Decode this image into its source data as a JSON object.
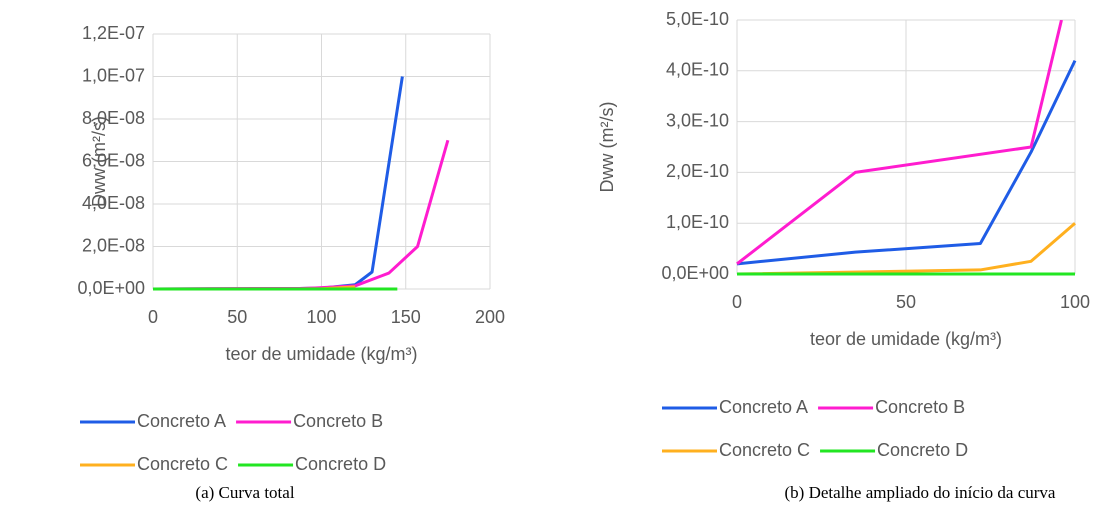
{
  "chart_data": [
    {
      "type": "line",
      "caption": "(a) Curva total",
      "x_label": "teor de umidade (kg/m³)",
      "y_label": "Dww (m²/s)",
      "xlim": [
        0,
        200
      ],
      "xticks": [
        0,
        50,
        100,
        150,
        200
      ],
      "ylim": [
        0,
        1.2e-07
      ],
      "yticks": [
        {
          "value": 0,
          "label": "0,0E+00"
        },
        {
          "value": 2e-08,
          "label": "2,0E-08"
        },
        {
          "value": 4e-08,
          "label": "4,0E-08"
        },
        {
          "value": 6e-08,
          "label": "6,0E-08"
        },
        {
          "value": 8e-08,
          "label": "8,0E-08"
        },
        {
          "value": 1e-07,
          "label": "1,0E-07"
        },
        {
          "value": 1.2e-07,
          "label": "1,2E-07"
        }
      ],
      "grid": true,
      "series": [
        {
          "name": "Concreto A",
          "color": "#1f5ce6",
          "x": [
            0,
            35,
            72,
            87,
            100,
            120,
            130,
            148
          ],
          "values": [
            2e-11,
            4.3e-11,
            6e-11,
            2.4e-10,
            4.2e-10,
            2e-09,
            8e-09,
            1e-07
          ]
        },
        {
          "name": "Concreto B",
          "color": "#ff1ccf",
          "x": [
            0,
            35,
            87,
            96,
            120,
            140,
            157,
            175
          ],
          "values": [
            2e-11,
            2e-10,
            2.5e-10,
            5e-10,
            1.5e-09,
            7.5e-09,
            2e-08,
            7e-08
          ]
        },
        {
          "name": "Concreto C",
          "color": "#ffb01f",
          "x": [
            0,
            72,
            87,
            100,
            120
          ],
          "values": [
            0,
            8e-12,
            2.5e-11,
            1e-10,
            1e-09
          ]
        },
        {
          "name": "Concreto D",
          "color": "#22e622",
          "x": [
            0,
            145
          ],
          "values": [
            0,
            0
          ]
        }
      ]
    },
    {
      "type": "line",
      "caption": "(b) Detalhe ampliado do início da curva",
      "x_label": "teor de umidade (kg/m³)",
      "y_label": "Dww (m²/s)",
      "xlim": [
        0,
        100
      ],
      "xticks": [
        0,
        50,
        100
      ],
      "ylim": [
        0,
        5e-10
      ],
      "yticks": [
        {
          "value": 0,
          "label": "0,0E+00"
        },
        {
          "value": 1e-10,
          "label": "1,0E-10"
        },
        {
          "value": 2e-10,
          "label": "2,0E-10"
        },
        {
          "value": 3e-10,
          "label": "3,0E-10"
        },
        {
          "value": 4e-10,
          "label": "4,0E-10"
        },
        {
          "value": 5e-10,
          "label": "5,0E-10"
        }
      ],
      "grid": true,
      "series": [
        {
          "name": "Concreto A",
          "color": "#1f5ce6",
          "x": [
            0,
            35,
            72,
            87,
            100
          ],
          "values": [
            2e-11,
            4.3e-11,
            6e-11,
            2.4e-10,
            4.2e-10
          ]
        },
        {
          "name": "Concreto B",
          "color": "#ff1ccf",
          "x": [
            0,
            35,
            87,
            96
          ],
          "values": [
            2e-11,
            2e-10,
            2.5e-10,
            5e-10
          ]
        },
        {
          "name": "Concreto C",
          "color": "#ffb01f",
          "x": [
            0,
            72,
            87,
            100
          ],
          "values": [
            0,
            8e-12,
            2.5e-11,
            1e-10
          ]
        },
        {
          "name": "Concreto D",
          "color": "#22e622",
          "x": [
            0,
            100
          ],
          "values": [
            0,
            0
          ]
        }
      ]
    }
  ]
}
